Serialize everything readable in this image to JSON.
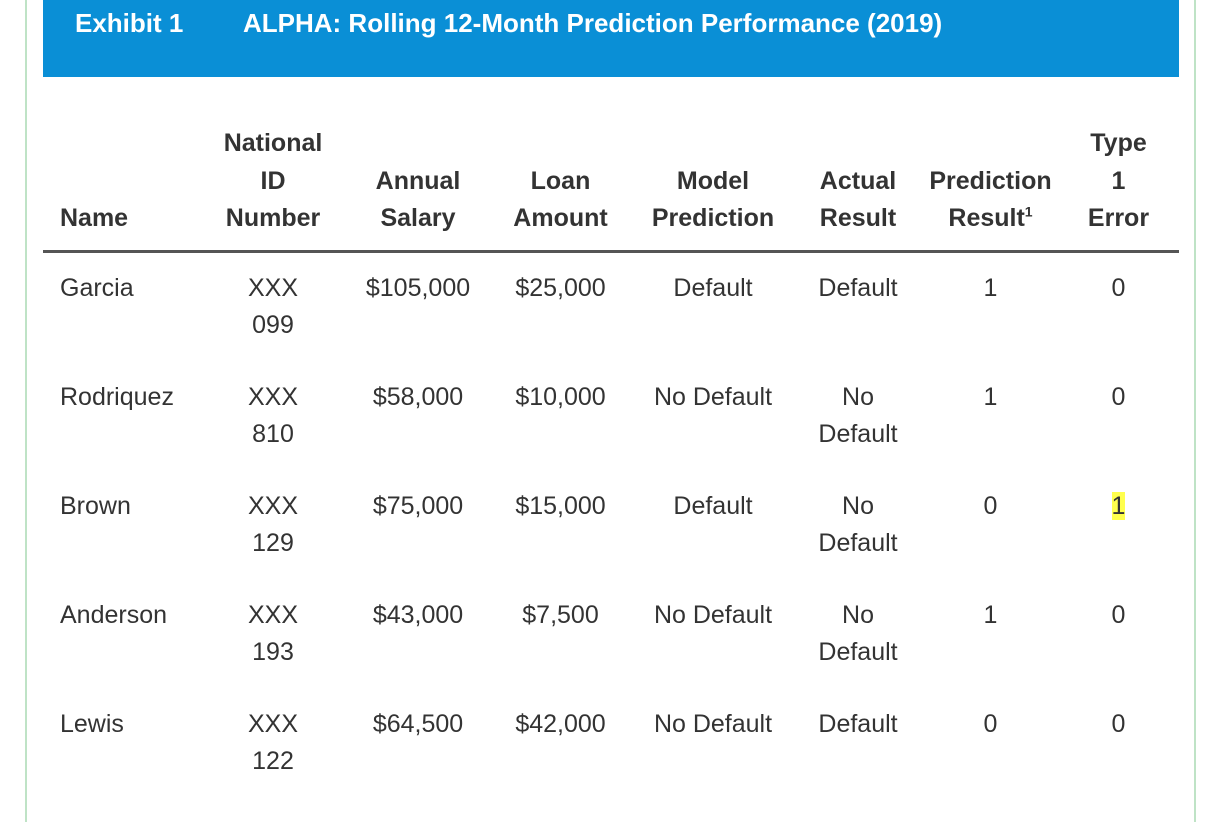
{
  "banner": {
    "exhibit": "Exhibit 1",
    "title": "ALPHA: Rolling 12-Month Prediction Performance (2019)",
    "color": "#0a8fd6"
  },
  "table": {
    "headers": {
      "name": "Name",
      "national_id": [
        "National",
        "ID",
        "Number"
      ],
      "annual_salary": [
        "Annual",
        "Salary"
      ],
      "loan_amount": [
        "Loan",
        "Amount"
      ],
      "model_prediction": [
        "Model",
        "Prediction"
      ],
      "actual_result": [
        "Actual",
        "Result"
      ],
      "prediction_result": [
        "Prediction",
        "Result"
      ],
      "prediction_result_footnote": "1",
      "type1_error": [
        "Type",
        "1",
        "Error"
      ]
    },
    "rows": [
      {
        "name": "Garcia",
        "id": [
          "XXX",
          "099"
        ],
        "salary": "$105,000",
        "loan": "$25,000",
        "model": "Default",
        "actual": [
          "Default"
        ],
        "prediction_result": "1",
        "type1": "0"
      },
      {
        "name": "Rodriquez",
        "id": [
          "XXX",
          "810"
        ],
        "salary": "$58,000",
        "loan": "$10,000",
        "model": "No Default",
        "actual": [
          "No",
          "Default"
        ],
        "prediction_result": "1",
        "type1": "0"
      },
      {
        "name": "Brown",
        "id": [
          "XXX",
          "129"
        ],
        "salary": "$75,000",
        "loan": "$15,000",
        "model": "Default",
        "actual": [
          "No",
          "Default"
        ],
        "prediction_result": "0",
        "type1": "1",
        "type1_highlight": true
      },
      {
        "name": "Anderson",
        "id": [
          "XXX",
          "193"
        ],
        "salary": "$43,000",
        "loan": "$7,500",
        "model": "No Default",
        "actual": [
          "No",
          "Default"
        ],
        "prediction_result": "1",
        "type1": "0"
      },
      {
        "name": "Lewis",
        "id": [
          "XXX",
          "122"
        ],
        "salary": "$64,500",
        "loan": "$42,000",
        "model": "No Default",
        "actual": [
          "Default"
        ],
        "prediction_result": "0",
        "type1": "0"
      }
    ],
    "highlight_color": "#ffff4d"
  }
}
